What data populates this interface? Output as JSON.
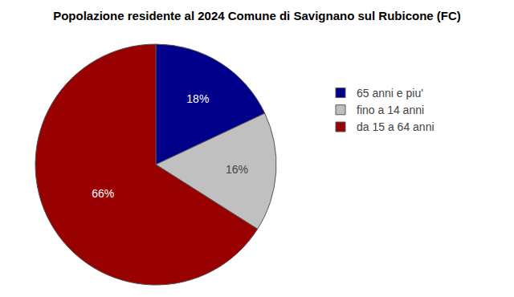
{
  "chart_data": {
    "type": "pie",
    "title": "Popolazione residente al 2024 Comune di Savignano sul Rubicone (FC)",
    "categories": [
      "65 anni e piu'",
      "fino a 14 anni",
      "da 15 a 64 anni"
    ],
    "values": [
      18,
      16,
      66
    ],
    "value_labels": [
      "18%",
      "16%",
      "66%"
    ],
    "colors": [
      "#00008B",
      "#C0C0C0",
      "#990000"
    ],
    "data_labels": true,
    "legend": "right"
  }
}
